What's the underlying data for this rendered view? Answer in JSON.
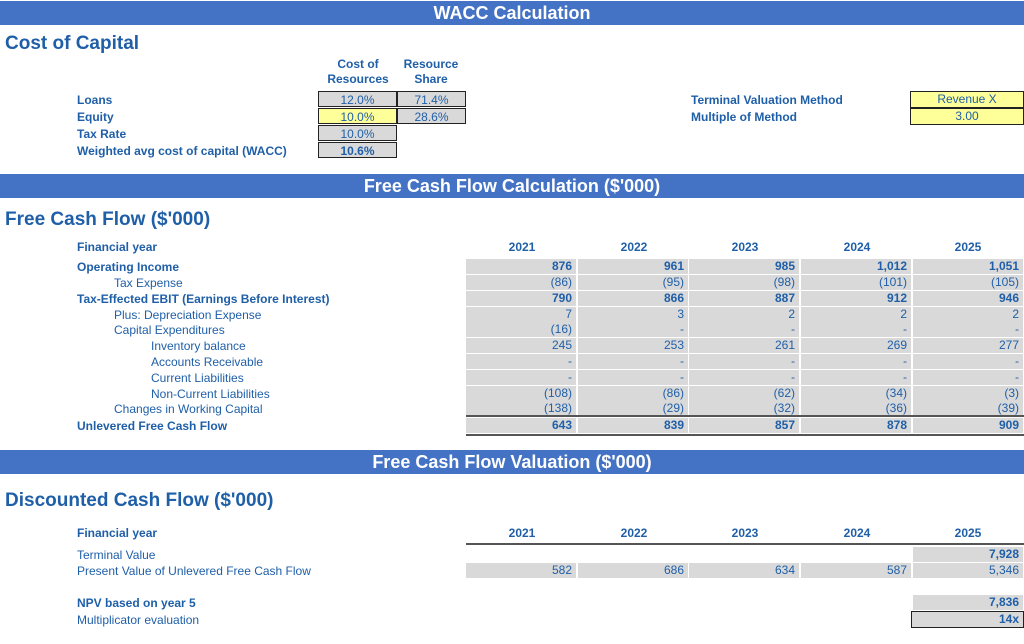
{
  "banners": {
    "wacc": "WACC Calculation",
    "fcf": "Free Cash Flow Calculation ($'000)",
    "valuation": "Free Cash Flow Valuation ($'000)"
  },
  "cost_of_capital": {
    "title": "Cost of Capital",
    "col_cost": [
      "Cost of",
      "Resources"
    ],
    "col_share": [
      "Resource",
      "Share"
    ],
    "rows": [
      {
        "label": "Loans",
        "cost": "12.0%",
        "share": "71.4%"
      },
      {
        "label": "Equity",
        "cost": "10.0%",
        "share": "28.6%"
      },
      {
        "label": "Tax Rate",
        "cost": "10.0%"
      },
      {
        "label": "Weighted avg cost of capital (WACC)",
        "cost": "10.6%"
      }
    ],
    "terminal_label": "Terminal Valuation Method",
    "terminal_value": "Revenue X",
    "multiple_label": "Multiple of Method",
    "multiple_value": "3.00"
  },
  "fcf": {
    "title": "Free Cash Flow ($'000)",
    "year_label": "Financial year",
    "years": [
      "2021",
      "2022",
      "2023",
      "2024",
      "2025"
    ],
    "rows": [
      {
        "label": "Operating Income",
        "values": [
          "876",
          "961",
          "985",
          "1,012",
          "1,051"
        ]
      },
      {
        "label": "Tax Expense",
        "values": [
          "(86)",
          "(95)",
          "(98)",
          "(101)",
          "(105)"
        ]
      },
      {
        "label": "Tax-Effected EBIT (Earnings Before Interest)",
        "values": [
          "790",
          "866",
          "887",
          "912",
          "946"
        ]
      },
      {
        "label": "Plus: Depreciation Expense",
        "values": [
          "7",
          "3",
          "2",
          "2",
          "2"
        ]
      },
      {
        "label": "Capital Expenditures",
        "values": [
          "(16)",
          "-",
          "-",
          "-",
          "-"
        ]
      },
      {
        "label": "Inventory balance",
        "values": [
          "245",
          "253",
          "261",
          "269",
          "277"
        ]
      },
      {
        "label": "Accounts Receivable",
        "values": [
          "-",
          "-",
          "-",
          "-",
          "-"
        ]
      },
      {
        "label": "Current Liabilities",
        "values": [
          "-",
          "-",
          "-",
          "-",
          "-"
        ]
      },
      {
        "label": "Non-Current Liabilities",
        "values": [
          "(108)",
          "(86)",
          "(62)",
          "(34)",
          "(3)"
        ]
      },
      {
        "label": "Changes in Working Capital",
        "values": [
          "(138)",
          "(29)",
          "(32)",
          "(36)",
          "(39)"
        ]
      },
      {
        "label": "Unlevered Free Cash Flow",
        "values": [
          "643",
          "839",
          "857",
          "878",
          "909"
        ]
      }
    ]
  },
  "dcf": {
    "title": "Discounted Cash Flow ($'000)",
    "year_label": "Financial year",
    "years": [
      "2021",
      "2022",
      "2023",
      "2024",
      "2025"
    ],
    "terminal_label": "Terminal Value",
    "terminal_value": "7,928",
    "pv_label": "Present Value of Unlevered Free Cash Flow",
    "pv_values": [
      "582",
      "686",
      "634",
      "587",
      "5,346"
    ],
    "npv_label": "NPV based on year 5",
    "npv_value": "7,836",
    "mult_label": "Multiplicator evaluation",
    "mult_value": "14x"
  }
}
